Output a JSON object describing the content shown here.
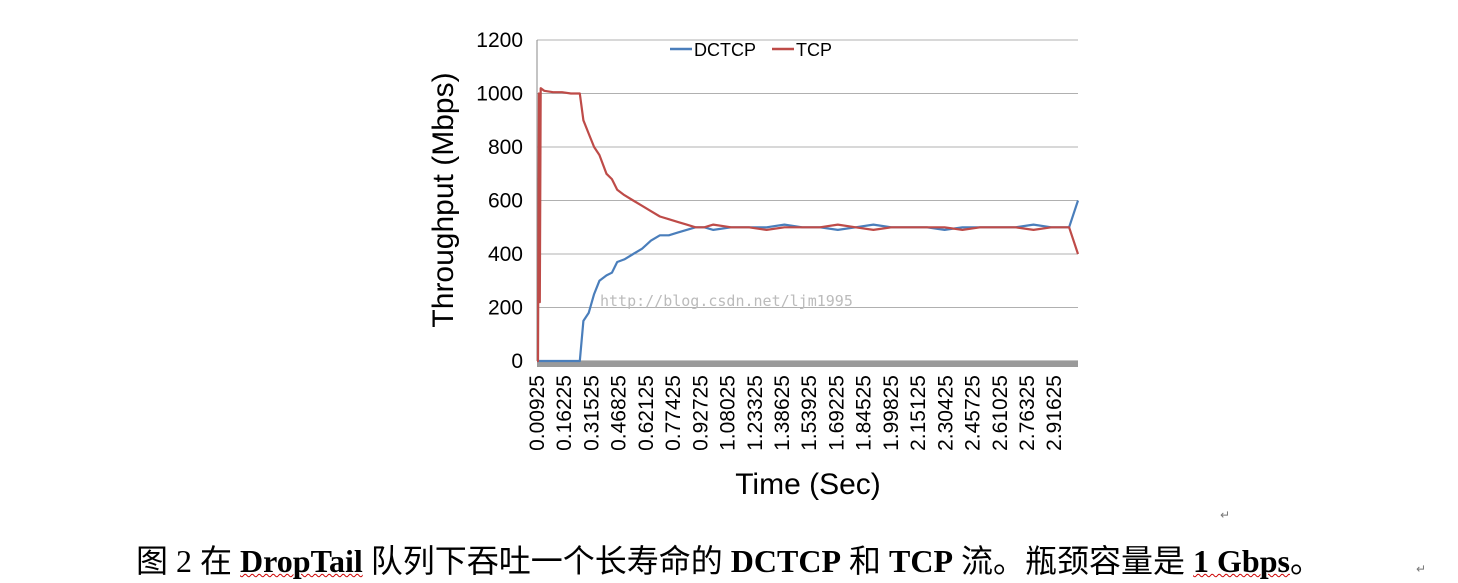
{
  "chart_data": {
    "type": "line",
    "xlabel": "Time (Sec)",
    "ylabel": "Throughput (Mbps)",
    "ylim": [
      0,
      1200
    ],
    "yticks": [
      "0",
      "200",
      "400",
      "600",
      "800",
      "1000",
      "1200"
    ],
    "xticks": [
      "0.00925",
      "0.16225",
      "0.31525",
      "0.46825",
      "0.62125",
      "0.77425",
      "0.92725",
      "1.08025",
      "1.23325",
      "1.38625",
      "1.53925",
      "1.69225",
      "1.84525",
      "1.99825",
      "2.15125",
      "2.30425",
      "2.45725",
      "2.61025",
      "2.76325",
      "2.91625"
    ],
    "xlim": [
      0.00925,
      3.05
    ],
    "grid": true,
    "legend": "top-center",
    "series": [
      {
        "name": "DCTCP",
        "color": "#4a7ebb",
        "x": [
          0.00925,
          0.05,
          0.1,
          0.15,
          0.2,
          0.25,
          0.27,
          0.3,
          0.33,
          0.36,
          0.4,
          0.43,
          0.46,
          0.5,
          0.55,
          0.6,
          0.65,
          0.7,
          0.75,
          0.8,
          0.85,
          0.9,
          0.95,
          1.0,
          1.1,
          1.2,
          1.3,
          1.4,
          1.5,
          1.6,
          1.7,
          1.8,
          1.9,
          2.0,
          2.1,
          2.2,
          2.3,
          2.4,
          2.5,
          2.6,
          2.7,
          2.8,
          2.9,
          3.0,
          3.05
        ],
        "y": [
          0,
          0,
          0,
          0,
          0,
          0,
          150,
          180,
          250,
          300,
          320,
          330,
          370,
          380,
          400,
          420,
          450,
          470,
          470,
          480,
          490,
          500,
          500,
          490,
          500,
          500,
          500,
          510,
          500,
          500,
          490,
          500,
          510,
          500,
          500,
          500,
          490,
          500,
          500,
          500,
          500,
          510,
          500,
          500,
          600
        ]
      },
      {
        "name": "TCP",
        "color": "#be4b48",
        "x": [
          0.00925,
          0.015,
          0.02,
          0.025,
          0.03,
          0.05,
          0.1,
          0.15,
          0.2,
          0.25,
          0.27,
          0.3,
          0.33,
          0.36,
          0.4,
          0.43,
          0.46,
          0.5,
          0.55,
          0.6,
          0.65,
          0.7,
          0.75,
          0.8,
          0.85,
          0.9,
          0.95,
          1.0,
          1.1,
          1.2,
          1.3,
          1.4,
          1.5,
          1.6,
          1.7,
          1.8,
          1.9,
          2.0,
          2.1,
          2.2,
          2.3,
          2.4,
          2.5,
          2.6,
          2.7,
          2.8,
          2.9,
          3.0,
          3.05
        ],
        "y": [
          0,
          0,
          1000,
          220,
          1020,
          1010,
          1005,
          1005,
          1000,
          1000,
          900,
          850,
          800,
          770,
          700,
          680,
          640,
          620,
          600,
          580,
          560,
          540,
          530,
          520,
          510,
          500,
          500,
          510,
          500,
          500,
          490,
          500,
          500,
          500,
          510,
          500,
          490,
          500,
          500,
          500,
          500,
          490,
          500,
          500,
          500,
          490,
          500,
          500,
          400
        ]
      }
    ]
  },
  "watermark": "http://blog.csdn.net/ljm1995",
  "caption": {
    "prefix": "图 2  在 ",
    "bold1": "DropTail",
    "mid1": " 队列下吞吐一个长寿命的 ",
    "bold2": "DCTCP",
    "mid2": " 和 ",
    "bold3": "TCP",
    "mid3": " 流。瓶颈容量是 ",
    "bold4": "1 Gbps",
    "suffix": "。"
  },
  "para_mark": "↵"
}
